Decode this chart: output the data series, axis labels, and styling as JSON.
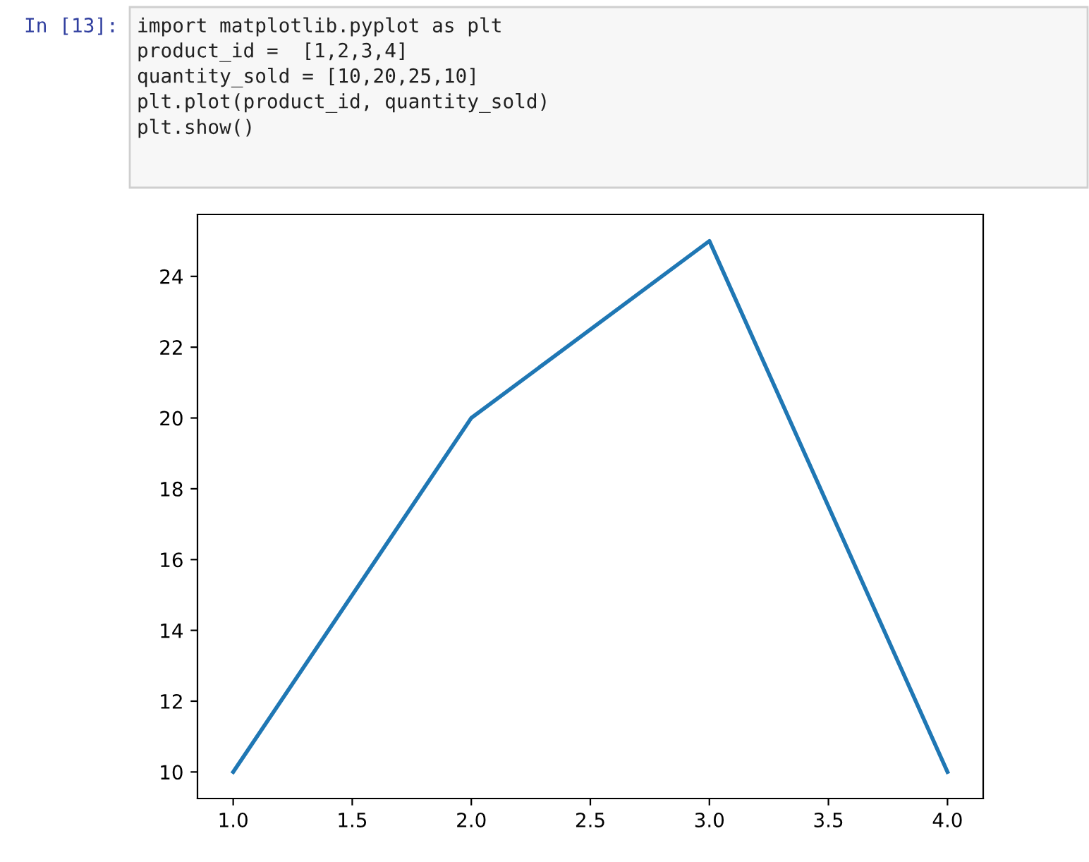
{
  "chart_data": {
    "type": "line",
    "x": [
      1,
      2,
      3,
      4
    ],
    "series": [
      {
        "color": "#1f77b4",
        "values": [
          10,
          20,
          25,
          10
        ]
      }
    ],
    "xlim": [
      0.85,
      4.15
    ],
    "ylim": [
      9.25,
      25.75
    ],
    "xticks": [
      {
        "value": 1,
        "label": "1.0"
      },
      {
        "value": 1.5,
        "label": "1.5"
      },
      {
        "value": 2,
        "label": "2.0"
      },
      {
        "value": 2.5,
        "label": "2.5"
      },
      {
        "value": 3,
        "label": "3.0"
      },
      {
        "value": 3.5,
        "label": "3.5"
      },
      {
        "value": 4,
        "label": "4.0"
      }
    ],
    "yticks": [
      10,
      12,
      14,
      16,
      18,
      20,
      22,
      24
    ],
    "grid": false,
    "legend": false,
    "marker": "none",
    "line_style": "solid",
    "annotations": [
      "In [13]:",
      "import matplotlib.pyplot as plt",
      "product_id =  [1,2,3,4]",
      "quantity_sold = [10,20,25,10]",
      "plt.plot(product_id, quantity_sold)",
      "plt.show()"
    ]
  }
}
